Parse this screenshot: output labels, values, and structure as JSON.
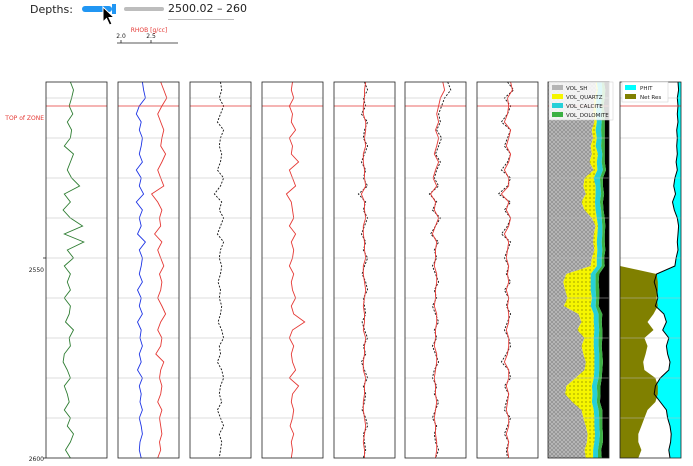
{
  "controls": {
    "depths_label": "Depths:",
    "range_text": "2500.02 – 260",
    "slider_fraction": 0.36,
    "accent_color": "#2196f3"
  },
  "track_header": {
    "curve": "RHOB [g/cc]",
    "ticks": [
      "2.0",
      "2.5"
    ],
    "color": "#e53935"
  },
  "zone": {
    "label": "TOP of ZONE",
    "depth": 2512,
    "color": "#e53935"
  },
  "chart_data": {
    "type": "line",
    "ylim": [
      2600,
      2506
    ],
    "y_ticks": [
      2550,
      2600
    ],
    "y_tick_labels": [
      "2550",
      "2600"
    ],
    "grid_depths": [
      2510,
      2520,
      2530,
      2540,
      2550,
      2560,
      2570,
      2580,
      2590
    ],
    "depth": [
      2506,
      2508,
      2510,
      2512,
      2514,
      2516,
      2518,
      2520,
      2522,
      2524,
      2526,
      2528,
      2530,
      2532,
      2534,
      2536,
      2538,
      2540,
      2542,
      2544,
      2546,
      2548,
      2550,
      2552,
      2554,
      2556,
      2558,
      2560,
      2562,
      2564,
      2566,
      2568,
      2570,
      2572,
      2574,
      2576,
      2578,
      2580,
      2582,
      2584,
      2586,
      2588,
      2590,
      2592,
      2594,
      2596,
      2598,
      2600
    ],
    "tracks": [
      {
        "curves": [
          {
            "color": "#2e7d32",
            "dash": "",
            "values": [
              0.4,
              0.45,
              0.42,
              0.38,
              0.44,
              0.35,
              0.42,
              0.4,
              0.3,
              0.45,
              0.4,
              0.35,
              0.42,
              0.55,
              0.3,
              0.4,
              0.28,
              0.4,
              0.6,
              0.3,
              0.62,
              0.35,
              0.45,
              0.3,
              0.4,
              0.35,
              0.4,
              0.3,
              0.4,
              0.38,
              0.32,
              0.45,
              0.38,
              0.4,
              0.3,
              0.28,
              0.35,
              0.4,
              0.3,
              0.35,
              0.38,
              0.3,
              0.4,
              0.35,
              0.45,
              0.4,
              0.32,
              0.4
            ]
          }
        ]
      },
      {
        "curves": [
          {
            "color": "#e53935",
            "dash": "",
            "values": [
              0.7,
              0.75,
              0.8,
              0.72,
              0.65,
              0.7,
              0.75,
              0.72,
              0.7,
              0.78,
              0.72,
              0.65,
              0.7,
              0.75,
              0.55,
              0.65,
              0.72,
              0.68,
              0.7,
              0.6,
              0.72,
              0.65,
              0.7,
              0.75,
              0.68,
              0.72,
              0.7,
              0.65,
              0.72,
              0.78,
              0.7,
              0.65,
              0.72,
              0.7,
              0.62,
              0.75,
              0.7,
              0.68,
              0.72,
              0.7,
              0.65,
              0.72,
              0.68,
              0.7,
              0.72,
              0.68,
              0.7,
              0.65
            ]
          },
          {
            "color": "#1e35e5",
            "dash": "",
            "values": [
              0.4,
              0.42,
              0.45,
              0.35,
              0.3,
              0.38,
              0.35,
              0.4,
              0.38,
              0.35,
              0.4,
              0.3,
              0.38,
              0.35,
              0.42,
              0.3,
              0.4,
              0.35,
              0.38,
              0.32,
              0.45,
              0.35,
              0.4,
              0.38,
              0.35,
              0.4,
              0.32,
              0.38,
              0.35,
              0.4,
              0.32,
              0.38,
              0.36,
              0.4,
              0.35,
              0.38,
              0.32,
              0.4,
              0.35,
              0.38,
              0.36,
              0.4,
              0.35,
              0.38,
              0.4,
              0.36,
              0.35,
              0.38
            ]
          }
        ]
      },
      {
        "curves": [
          {
            "color": "#111111",
            "dash": "2,1.5",
            "values": [
              0.5,
              0.52,
              0.48,
              0.55,
              0.5,
              0.45,
              0.55,
              0.5,
              0.48,
              0.52,
              0.5,
              0.45,
              0.55,
              0.5,
              0.4,
              0.52,
              0.48,
              0.55,
              0.5,
              0.45,
              0.55,
              0.5,
              0.48,
              0.52,
              0.5,
              0.46,
              0.5,
              0.48,
              0.52,
              0.5,
              0.46,
              0.52,
              0.55,
              0.48,
              0.5,
              0.45,
              0.52,
              0.55,
              0.5,
              0.48,
              0.52,
              0.45,
              0.5,
              0.55,
              0.48,
              0.52,
              0.5,
              0.48
            ]
          }
        ]
      },
      {
        "curves": [
          {
            "color": "#e53935",
            "dash": "",
            "values": [
              0.5,
              0.48,
              0.52,
              0.45,
              0.5,
              0.48,
              0.55,
              0.45,
              0.5,
              0.48,
              0.6,
              0.45,
              0.5,
              0.55,
              0.4,
              0.48,
              0.5,
              0.52,
              0.45,
              0.55,
              0.48,
              0.52,
              0.5,
              0.45,
              0.52,
              0.48,
              0.5,
              0.55,
              0.48,
              0.52,
              0.7,
              0.5,
              0.45,
              0.52,
              0.48,
              0.5,
              0.55,
              0.45,
              0.6,
              0.5,
              0.48,
              0.52,
              0.5,
              0.46,
              0.52,
              0.48,
              0.5,
              0.48
            ]
          }
        ]
      },
      {
        "curves": [
          {
            "color": "#111111",
            "dash": "2,1.5",
            "values": [
              0.5,
              0.55,
              0.48,
              0.52,
              0.45,
              0.55,
              0.5,
              0.48,
              0.55,
              0.5,
              0.45,
              0.52,
              0.48,
              0.55,
              0.4,
              0.52,
              0.48,
              0.55,
              0.5,
              0.45,
              0.52,
              0.48,
              0.55,
              0.5,
              0.46,
              0.52,
              0.55,
              0.48,
              0.5,
              0.52,
              0.46,
              0.5,
              0.55,
              0.48,
              0.52,
              0.45,
              0.5,
              0.55,
              0.48,
              0.52,
              0.5,
              0.46,
              0.52,
              0.55,
              0.48,
              0.5,
              0.52,
              0.48
            ]
          },
          {
            "color": "#e53935",
            "dash": "",
            "values": [
              0.52,
              0.5,
              0.5,
              0.48,
              0.48,
              0.52,
              0.52,
              0.5,
              0.52,
              0.48,
              0.48,
              0.5,
              0.5,
              0.52,
              0.45,
              0.5,
              0.5,
              0.52,
              0.48,
              0.48,
              0.5,
              0.5,
              0.52,
              0.48,
              0.48,
              0.5,
              0.52,
              0.5,
              0.48,
              0.5,
              0.5,
              0.48,
              0.52,
              0.5,
              0.5,
              0.48,
              0.48,
              0.52,
              0.5,
              0.5,
              0.48,
              0.48,
              0.5,
              0.52,
              0.5,
              0.48,
              0.5,
              0.5
            ]
          }
        ]
      },
      {
        "curves": [
          {
            "color": "#111111",
            "dash": "2,1.5",
            "values": [
              0.7,
              0.75,
              0.65,
              0.6,
              0.55,
              0.58,
              0.52,
              0.6,
              0.55,
              0.5,
              0.58,
              0.52,
              0.48,
              0.55,
              0.4,
              0.52,
              0.45,
              0.58,
              0.5,
              0.42,
              0.55,
              0.48,
              0.52,
              0.45,
              0.5,
              0.55,
              0.48,
              0.52,
              0.45,
              0.5,
              0.55,
              0.48,
              0.52,
              0.45,
              0.5,
              0.55,
              0.48,
              0.45,
              0.52,
              0.48,
              0.55,
              0.5,
              0.45,
              0.52,
              0.48,
              0.5,
              0.55,
              0.5
            ]
          },
          {
            "color": "#e53935",
            "dash": "",
            "values": [
              0.62,
              0.65,
              0.58,
              0.55,
              0.52,
              0.55,
              0.5,
              0.55,
              0.52,
              0.48,
              0.55,
              0.5,
              0.46,
              0.52,
              0.42,
              0.5,
              0.48,
              0.55,
              0.5,
              0.45,
              0.52,
              0.5,
              0.5,
              0.48,
              0.52,
              0.52,
              0.5,
              0.5,
              0.48,
              0.52,
              0.52,
              0.5,
              0.5,
              0.48,
              0.52,
              0.52,
              0.5,
              0.48,
              0.5,
              0.5,
              0.52,
              0.5,
              0.48,
              0.5,
              0.5,
              0.52,
              0.52,
              0.5
            ]
          }
        ]
      },
      {
        "curves": [
          {
            "color": "#111111",
            "dash": "2,1.5",
            "values": [
              0.5,
              0.6,
              0.45,
              0.55,
              0.5,
              0.4,
              0.55,
              0.5,
              0.45,
              0.55,
              0.5,
              0.4,
              0.55,
              0.5,
              0.35,
              0.55,
              0.45,
              0.55,
              0.5,
              0.4,
              0.55,
              0.5,
              0.45,
              0.52,
              0.48,
              0.55,
              0.45,
              0.52,
              0.48,
              0.55,
              0.5,
              0.45,
              0.52,
              0.55,
              0.48,
              0.4,
              0.52,
              0.55,
              0.45,
              0.52,
              0.48,
              0.45,
              0.55,
              0.5,
              0.45,
              0.52,
              0.48,
              0.5
            ]
          },
          {
            "color": "#e53935",
            "dash": "",
            "values": [
              0.55,
              0.58,
              0.5,
              0.52,
              0.5,
              0.45,
              0.55,
              0.52,
              0.48,
              0.55,
              0.52,
              0.45,
              0.52,
              0.52,
              0.4,
              0.52,
              0.48,
              0.55,
              0.52,
              0.45,
              0.52,
              0.5,
              0.48,
              0.52,
              0.5,
              0.52,
              0.48,
              0.52,
              0.5,
              0.52,
              0.52,
              0.48,
              0.52,
              0.52,
              0.5,
              0.45,
              0.52,
              0.52,
              0.48,
              0.52,
              0.5,
              0.48,
              0.52,
              0.52,
              0.48,
              0.52,
              0.5,
              0.52
            ]
          }
        ]
      }
    ],
    "lithology": {
      "legend": [
        "VOL_SH",
        "VOL_QUARTZ",
        "VOL_CALCITE",
        "VOL_DOLOMITE"
      ],
      "colors": [
        "#b5b5b5",
        "#f5f500",
        "#26d0d8",
        "#3cb043"
      ],
      "pore_color": "#000000",
      "vol_sh": [
        0.78,
        0.8,
        0.76,
        0.75,
        0.74,
        0.76,
        0.72,
        0.74,
        0.7,
        0.72,
        0.68,
        0.75,
        0.6,
        0.58,
        0.62,
        0.55,
        0.6,
        0.72,
        0.78,
        0.75,
        0.74,
        0.76,
        0.72,
        0.7,
        0.3,
        0.25,
        0.28,
        0.32,
        0.26,
        0.5,
        0.55,
        0.48,
        0.6,
        0.55,
        0.58,
        0.62,
        0.6,
        0.45,
        0.3,
        0.28,
        0.4,
        0.55,
        0.58,
        0.62,
        0.65,
        0.64,
        0.6,
        0.62
      ],
      "vol_quartz": [
        0.02,
        0.02,
        0.03,
        0.04,
        0.05,
        0.04,
        0.06,
        0.06,
        0.08,
        0.1,
        0.12,
        0.06,
        0.15,
        0.2,
        0.16,
        0.22,
        0.18,
        0.08,
        0.04,
        0.06,
        0.06,
        0.05,
        0.08,
        0.1,
        0.4,
        0.45,
        0.42,
        0.4,
        0.44,
        0.25,
        0.2,
        0.28,
        0.15,
        0.2,
        0.18,
        0.14,
        0.16,
        0.3,
        0.42,
        0.45,
        0.32,
        0.2,
        0.18,
        0.14,
        0.12,
        0.12,
        0.14,
        0.12
      ],
      "vol_calcite": [
        0.08,
        0.07,
        0.09,
        0.08,
        0.09,
        0.08,
        0.09,
        0.08,
        0.09,
        0.07,
        0.08,
        0.09,
        0.1,
        0.08,
        0.09,
        0.08,
        0.09,
        0.08,
        0.07,
        0.08,
        0.08,
        0.08,
        0.08,
        0.08,
        0.08,
        0.08,
        0.08,
        0.07,
        0.08,
        0.08,
        0.08,
        0.08,
        0.08,
        0.08,
        0.08,
        0.08,
        0.08,
        0.08,
        0.08,
        0.08,
        0.08,
        0.08,
        0.08,
        0.08,
        0.08,
        0.08,
        0.08,
        0.08
      ],
      "vol_dolomite": [
        0.04,
        0.05,
        0.05,
        0.04,
        0.05,
        0.05,
        0.06,
        0.05,
        0.06,
        0.04,
        0.05,
        0.05,
        0.05,
        0.04,
        0.05,
        0.05,
        0.04,
        0.05,
        0.05,
        0.04,
        0.05,
        0.05,
        0.04,
        0.05,
        0.06,
        0.05,
        0.06,
        0.05,
        0.05,
        0.06,
        0.05,
        0.05,
        0.06,
        0.05,
        0.05,
        0.06,
        0.05,
        0.05,
        0.06,
        0.05,
        0.05,
        0.06,
        0.05,
        0.05,
        0.05,
        0.06,
        0.05,
        0.06
      ]
    },
    "porosity": {
      "legend": [
        "PHIT",
        "Net Res"
      ],
      "colors": [
        "#00ffff",
        "#808000"
      ],
      "phit": [
        0.05,
        0.04,
        0.06,
        0.05,
        0.06,
        0.05,
        0.07,
        0.06,
        0.07,
        0.06,
        0.08,
        0.06,
        0.1,
        0.12,
        0.09,
        0.14,
        0.11,
        0.06,
        0.04,
        0.05,
        0.06,
        0.05,
        0.08,
        0.1,
        0.4,
        0.44,
        0.4,
        0.38,
        0.42,
        0.28,
        0.24,
        0.3,
        0.2,
        0.24,
        0.22,
        0.18,
        0.2,
        0.34,
        0.42,
        0.44,
        0.34,
        0.24,
        0.22,
        0.18,
        0.16,
        0.17,
        0.2,
        0.18
      ],
      "net_res": [
        0,
        0,
        0,
        0,
        0,
        0,
        0,
        0,
        0,
        0,
        0,
        0,
        0,
        0,
        0,
        0,
        0,
        0,
        0,
        0,
        0,
        0,
        0,
        0,
        0.6,
        0.62,
        0.62,
        0.6,
        0.62,
        0.55,
        0.45,
        0.55,
        0.4,
        0.45,
        0.42,
        0.38,
        0.4,
        0.58,
        0.62,
        0.62,
        0.58,
        0.45,
        0.4,
        0.35,
        0.3,
        0.3,
        0.35,
        0.3
      ]
    }
  }
}
